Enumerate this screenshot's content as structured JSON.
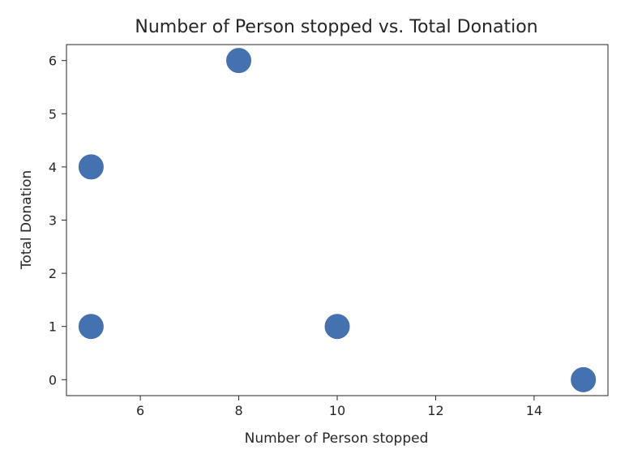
{
  "chart_data": {
    "type": "scatter",
    "title": "Number of Person stopped vs. Total Donation",
    "xlabel": "Number of Person stopped",
    "ylabel": "Total Donation",
    "x": [
      5,
      5,
      8,
      10,
      15
    ],
    "y": [
      1,
      4,
      6,
      1,
      0
    ],
    "xlim": [
      4.5,
      15.5
    ],
    "ylim": [
      -0.3,
      6.3
    ],
    "xticks": [
      6,
      8,
      10,
      12,
      14
    ],
    "yticks": [
      0,
      1,
      2,
      3,
      4,
      5,
      6
    ],
    "grid": false,
    "marker_color": "#4471b0"
  }
}
